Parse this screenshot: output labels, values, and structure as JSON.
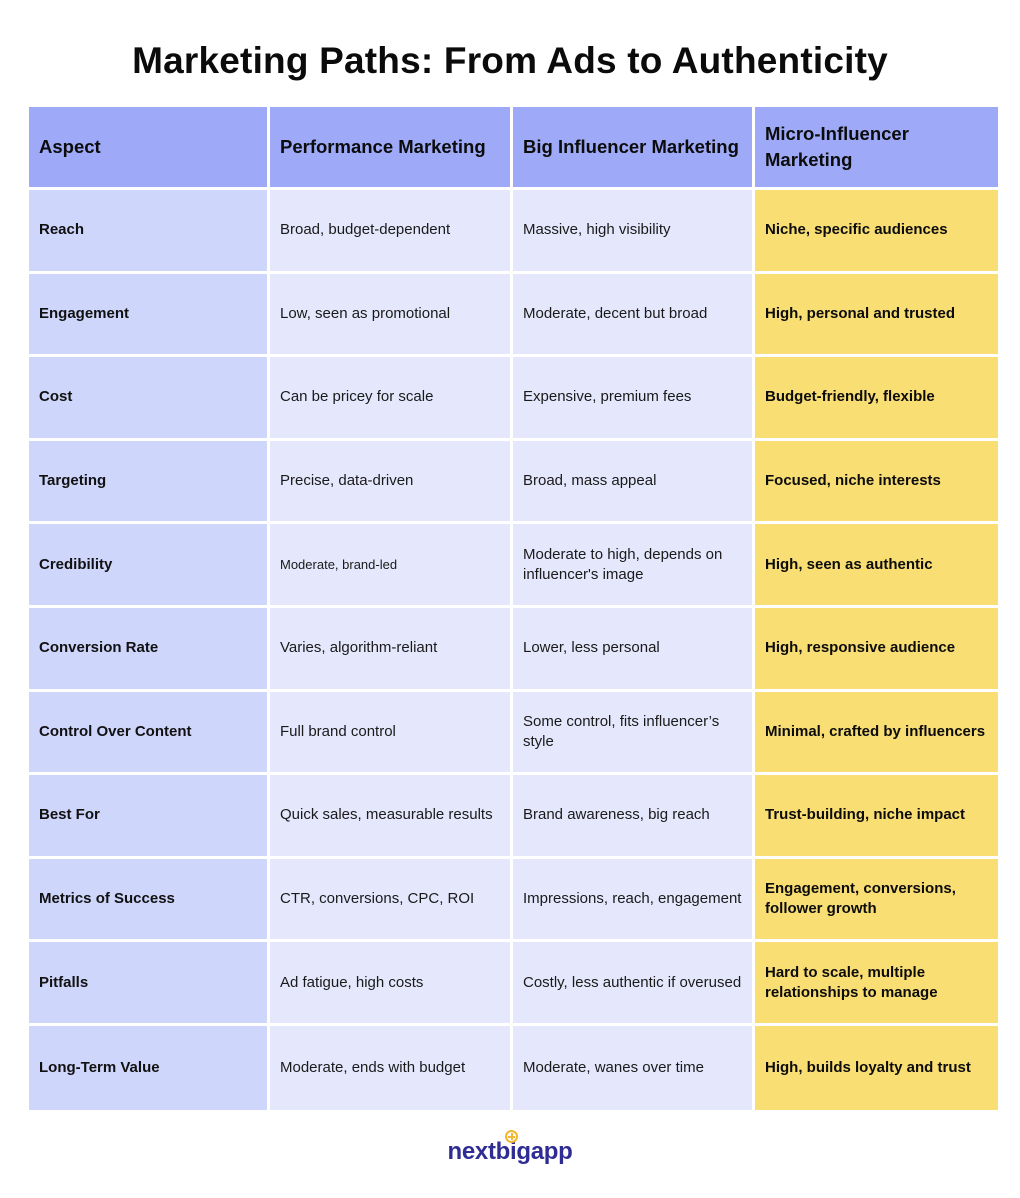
{
  "title": "Marketing Paths: From Ads to Authenticity",
  "columns": [
    "Aspect",
    "Performance Marketing",
    "Big Influencer Marketing",
    "Micro-Influencer Marketing"
  ],
  "rows": [
    [
      "Reach",
      "Broad, budget-dependent",
      "Massive, high visibility",
      "Niche, specific audiences"
    ],
    [
      "Engagement",
      "Low, seen as promotional",
      "Moderate, decent but broad",
      "High, personal and trusted"
    ],
    [
      "Cost",
      "Can be pricey for scale",
      "Expensive, premium fees",
      "Budget-friendly, flexible"
    ],
    [
      "Targeting",
      "Precise, data-driven",
      "Broad, mass appeal",
      "Focused, niche interests"
    ],
    [
      "Credibility",
      "Moderate, brand-led",
      "Moderate to high, depends on influencer's image",
      "High, seen as authentic"
    ],
    [
      "Conversion Rate",
      "Varies, algorithm-reliant",
      "Lower, less personal",
      "High, responsive audience"
    ],
    [
      "Control Over Content",
      "Full brand control",
      "Some control, fits influencer’s style",
      "Minimal, crafted by influencers"
    ],
    [
      "Best For",
      "Quick sales, measurable results",
      "Brand awareness, big reach",
      "Trust-building, niche impact"
    ],
    [
      "Metrics of Success",
      "CTR, conversions, CPC, ROI",
      "Impressions, reach, engagement",
      "Engagement, conversions, follower growth"
    ],
    [
      "Pitfalls",
      "Ad fatigue, high costs",
      "Costly, less authentic if overused",
      "Hard to scale, multiple relationships to manage"
    ],
    [
      "Long-Term Value",
      "Moderate, ends with budget",
      "Moderate, wanes over time",
      "High, builds loyalty and trust"
    ]
  ],
  "logo": {
    "text": "nextbigapp",
    "icon": "plus-circle-icon"
  },
  "colors": {
    "header": "#9eaaf8",
    "aspect": "#cfd6fb",
    "plain": "#e5e8fd",
    "highlight": "#f9de74",
    "logo": "#2f2d94",
    "logo_accent": "#f2b632"
  }
}
